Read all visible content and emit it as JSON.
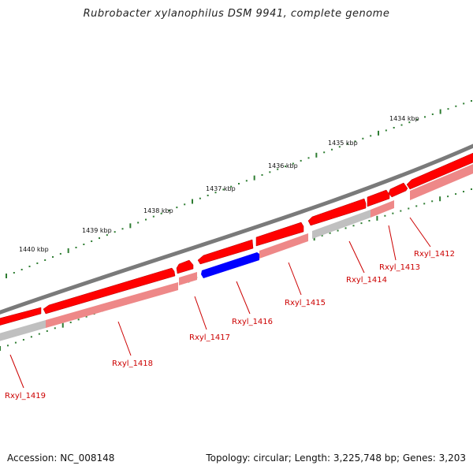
{
  "title": "Rubrobacter xylanophilus DSM 9941, complete genome",
  "footer": {
    "accession": "Accession: NC_008148",
    "topology": "Topology: circular; Length: 3,225,748 bp; Genes: 3,203"
  },
  "colors": {
    "backbone": "#7a7a7a",
    "gene_forward": "#ff0000",
    "gene_reverse_light": "#ee8888",
    "gene_gray": "#c0c0c0",
    "gene_highlight": "#0000ff",
    "tick": "#2e7d32",
    "label": "#cc0000",
    "kbp_label": "#111111"
  },
  "kbp_labels": [
    "1434 kbp",
    "1435 kbp",
    "1436 kbp",
    "1437 kbp",
    "1438 kbp",
    "1439 kbp",
    "1440 kbp"
  ],
  "genes": [
    {
      "id": "Rxyl_1412"
    },
    {
      "id": "Rxyl_1413"
    },
    {
      "id": "Rxyl_1414"
    },
    {
      "id": "Rxyl_1415"
    },
    {
      "id": "Rxyl_1416"
    },
    {
      "id": "Rxyl_1417"
    },
    {
      "id": "Rxyl_1418"
    },
    {
      "id": "Rxyl_1419"
    }
  ]
}
